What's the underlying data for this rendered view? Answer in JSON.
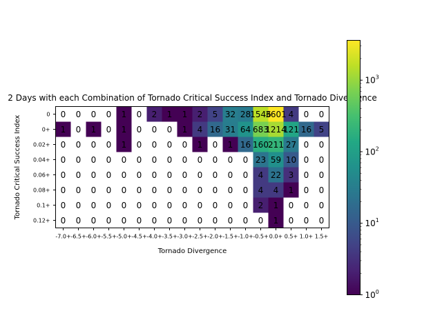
{
  "chart_data": {
    "type": "heatmap",
    "title": "2 Days with each Combination of Tornado Critical Success Index and Tornado Divergence",
    "xlabel": "Tornado Divergence",
    "ylabel": "Tornado Critical Success Index",
    "x_categories": [
      "-7.0+",
      "-6.5+",
      "-6.0+",
      "-5.5+",
      "-5.0+",
      "-4.5+",
      "-4.0+",
      "-3.5+",
      "-3.0+",
      "-2.5+",
      "-2.0+",
      "-1.5+",
      "-1.0+",
      "-0.5+",
      "0.0+",
      "0.5+",
      "1.0+",
      "1.5+"
    ],
    "y_categories": [
      "0",
      "0+",
      "0.02+",
      "0.04+",
      "0.06+",
      "0.08+",
      "0.1+",
      "0.12+"
    ],
    "values": [
      [
        0,
        0,
        0,
        0,
        1,
        0,
        2,
        1,
        1,
        2,
        5,
        32,
        28,
        1546,
        3601,
        4,
        0,
        0
      ],
      [
        1,
        0,
        1,
        0,
        1,
        0,
        0,
        0,
        1,
        4,
        16,
        31,
        64,
        683,
        1214,
        121,
        16,
        5
      ],
      [
        0,
        0,
        0,
        0,
        1,
        0,
        0,
        0,
        0,
        1,
        0,
        1,
        16,
        160,
        211,
        27,
        0,
        0
      ],
      [
        0,
        0,
        0,
        0,
        0,
        0,
        0,
        0,
        0,
        0,
        0,
        0,
        0,
        23,
        59,
        10,
        0,
        0
      ],
      [
        0,
        0,
        0,
        0,
        0,
        0,
        0,
        0,
        0,
        0,
        0,
        0,
        0,
        4,
        22,
        3,
        0,
        0
      ],
      [
        0,
        0,
        0,
        0,
        0,
        0,
        0,
        0,
        0,
        0,
        0,
        0,
        0,
        4,
        4,
        1,
        0,
        0
      ],
      [
        0,
        0,
        0,
        0,
        0,
        0,
        0,
        0,
        0,
        0,
        0,
        0,
        0,
        2,
        1,
        0,
        0,
        0
      ],
      [
        0,
        0,
        0,
        0,
        0,
        0,
        0,
        0,
        0,
        0,
        0,
        0,
        0,
        0,
        1,
        0,
        0,
        0
      ]
    ],
    "colorbar": {
      "scale": "log",
      "colormap": "viridis",
      "range": [
        1,
        3601
      ],
      "ticks": [
        {
          "value": 1,
          "base": "10",
          "exp": "0"
        },
        {
          "value": 10,
          "base": "10",
          "exp": "1"
        },
        {
          "value": 100,
          "base": "10",
          "exp": "2"
        },
        {
          "value": 1000,
          "base": "10",
          "exp": "3"
        }
      ]
    }
  }
}
